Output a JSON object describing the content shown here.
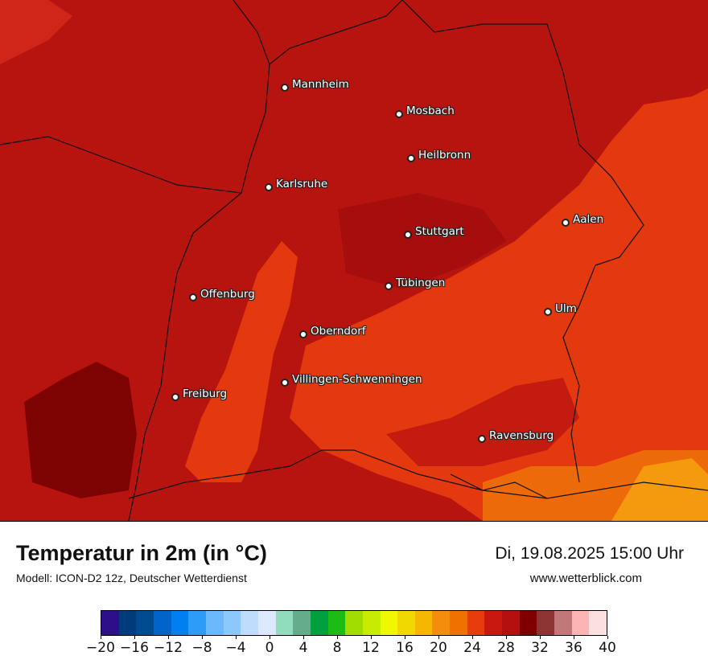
{
  "map": {
    "cities": [
      {
        "name": "Mannheim"
      },
      {
        "name": "Mosbach"
      },
      {
        "name": "Heilbronn"
      },
      {
        "name": "Karlsruhe"
      },
      {
        "name": "Aalen"
      },
      {
        "name": "Stuttgart"
      },
      {
        "name": "Tübingen"
      },
      {
        "name": "Offenburg"
      },
      {
        "name": "Ulm"
      },
      {
        "name": "Oberndorf"
      },
      {
        "name": "Villingen-Schwenningen"
      },
      {
        "name": "Freiburg"
      },
      {
        "name": "Ravensburg"
      }
    ]
  },
  "footer": {
    "title": "Temperatur in 2m (in °C)",
    "datetime": "Di, 19.08.2025 15:00 Uhr",
    "model": "Modell: ICON-D2 12z, Deutscher Wetterdienst",
    "website": "www.wetterblick.com"
  },
  "legend": {
    "colors": [
      "#2d0f8a",
      "#003c7c",
      "#004a8f",
      "#0064c8",
      "#0080f0",
      "#2c9cf8",
      "#6cb8fc",
      "#8cc8fc",
      "#c0dcfc",
      "#dce8fc",
      "#90dcbc",
      "#64ac8c",
      "#00a040",
      "#1cbc14",
      "#a0dc00",
      "#c8ec00",
      "#f0f800",
      "#f0d800",
      "#f4b800",
      "#f48c0c",
      "#f07000",
      "#e83c0c",
      "#c81810",
      "#b41010",
      "#800000",
      "#8c3434",
      "#c07878",
      "#fcb4b4",
      "#fce0e0"
    ],
    "ticks": [
      "−20",
      "−16",
      "−12",
      "−8",
      "−4",
      "0",
      "4",
      "8",
      "12",
      "16",
      "20",
      "24",
      "28",
      "32",
      "36",
      "40"
    ]
  }
}
